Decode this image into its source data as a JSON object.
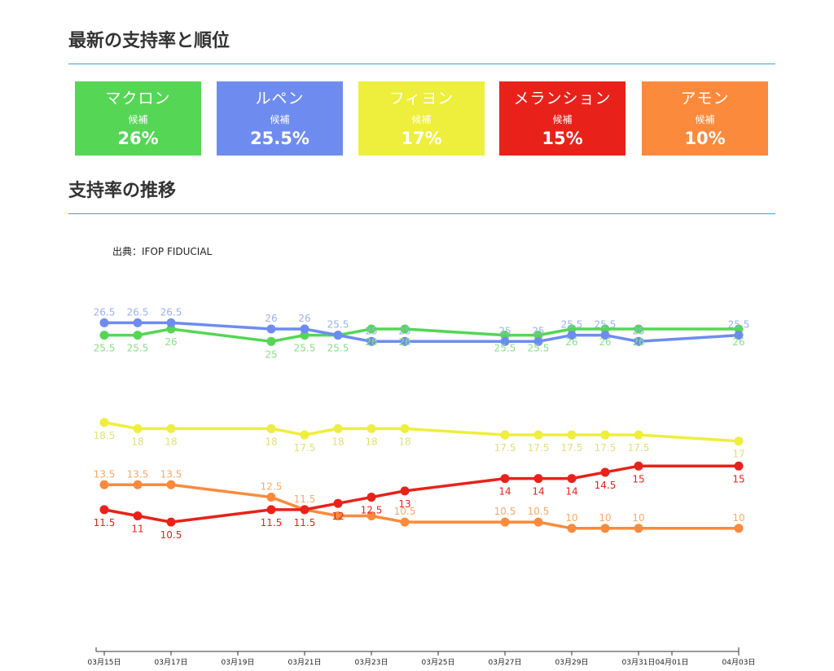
{
  "header": {
    "title": "最新の支持率と順位"
  },
  "cards": [
    {
      "name": "マクロン",
      "sub": "候補",
      "pct": "26%",
      "color": "#55d655"
    },
    {
      "name": "ルペン",
      "sub": "候補",
      "pct": "25.5%",
      "color": "#6e8cf0"
    },
    {
      "name": "フィヨン",
      "sub": "候補",
      "pct": "17%",
      "color": "#eeee3c"
    },
    {
      "name": "メランション",
      "sub": "候補",
      "pct": "15%",
      "color": "#e8221a"
    },
    {
      "name": "アモン",
      "sub": "候補",
      "pct": "10%",
      "color": "#fb8a3c"
    }
  ],
  "trend": {
    "title": "支持率の推移",
    "source": "出典：IFOP FIDUCIAL"
  },
  "chart_data": {
    "type": "line",
    "x": [
      "03/15",
      "03/16",
      "03/17",
      "03/20",
      "03/21",
      "03/22",
      "03/23",
      "03/24",
      "03/27",
      "03/28",
      "03/29",
      "03/30",
      "03/31",
      "04/03"
    ],
    "x_ticks": [
      "03月15日",
      "03月17日",
      "03月19日",
      "03月21日",
      "03月23日",
      "03月25日",
      "03月27日",
      "03月29日",
      "03月31日",
      "04月01日",
      "04月03日"
    ],
    "tick_dates": [
      "03/15",
      "03/17",
      "03/19",
      "03/21",
      "03/23",
      "03/25",
      "03/27",
      "03/29",
      "03/31",
      "04/01",
      "04/03"
    ],
    "series": [
      {
        "key": "macron",
        "color": "#55d655",
        "label_color": "#88e088",
        "label_pos": "below",
        "values": [
          25.5,
          25.5,
          26,
          25,
          25.5,
          25.5,
          26,
          26,
          25.5,
          25.5,
          26,
          26,
          26,
          26
        ],
        "labels": [
          "25.5",
          "25.5",
          "26",
          "25",
          "25.5",
          "25.5",
          "26",
          "26",
          "25.5",
          "25.5",
          "26",
          "26",
          "26",
          "26"
        ]
      },
      {
        "key": "lepen",
        "color": "#6e8cf0",
        "label_color": "#9bb0f5",
        "label_pos": "above",
        "values": [
          26.5,
          26.5,
          26.5,
          26,
          26,
          25.5,
          25,
          25,
          25,
          25,
          25.5,
          25.5,
          25,
          25.5
        ],
        "labels": [
          "26.5",
          "26.5",
          "26.5",
          "26",
          "26",
          "25.5",
          "25",
          "25",
          "25",
          "25",
          "25.5",
          "25.5",
          "25",
          "25.5"
        ]
      },
      {
        "key": "fillon",
        "color": "#eeee3c",
        "label_color": "#e0e07a",
        "label_pos": "below",
        "values": [
          18.5,
          18,
          18,
          18,
          17.5,
          18,
          18,
          18,
          17.5,
          17.5,
          17.5,
          17.5,
          17.5,
          17
        ],
        "labels": [
          "18.5",
          "18",
          "18",
          "18",
          "17.5",
          "18",
          "18",
          "18",
          "17.5",
          "17.5",
          "17.5",
          "17.5",
          "17.5",
          "17"
        ]
      },
      {
        "key": "hamon",
        "color": "#fb8a3c",
        "label_color": "#fba868",
        "label_pos": "above",
        "values": [
          13.5,
          13.5,
          13.5,
          12.5,
          11.5,
          11,
          11,
          10.5,
          10.5,
          10.5,
          10,
          10,
          10,
          10
        ],
        "labels": [
          "13.5",
          "13.5",
          "13.5",
          "12.5",
          "11.5",
          "",
          "",
          "10.5",
          "10.5",
          "10.5",
          "10",
          "10",
          "10",
          "10"
        ]
      },
      {
        "key": "melenchon",
        "color": "#e8221a",
        "label_color": "#e8221a",
        "label_pos": "below",
        "values": [
          11.5,
          11,
          10.5,
          11.5,
          11.5,
          12,
          12.5,
          13,
          14,
          14,
          14,
          14.5,
          15,
          15
        ],
        "labels": [
          "11.5",
          "11",
          "10.5",
          "11.5",
          "11.5",
          "12",
          "12.5",
          "13",
          "14",
          "14",
          "14",
          "14.5",
          "15",
          "15"
        ]
      }
    ]
  }
}
